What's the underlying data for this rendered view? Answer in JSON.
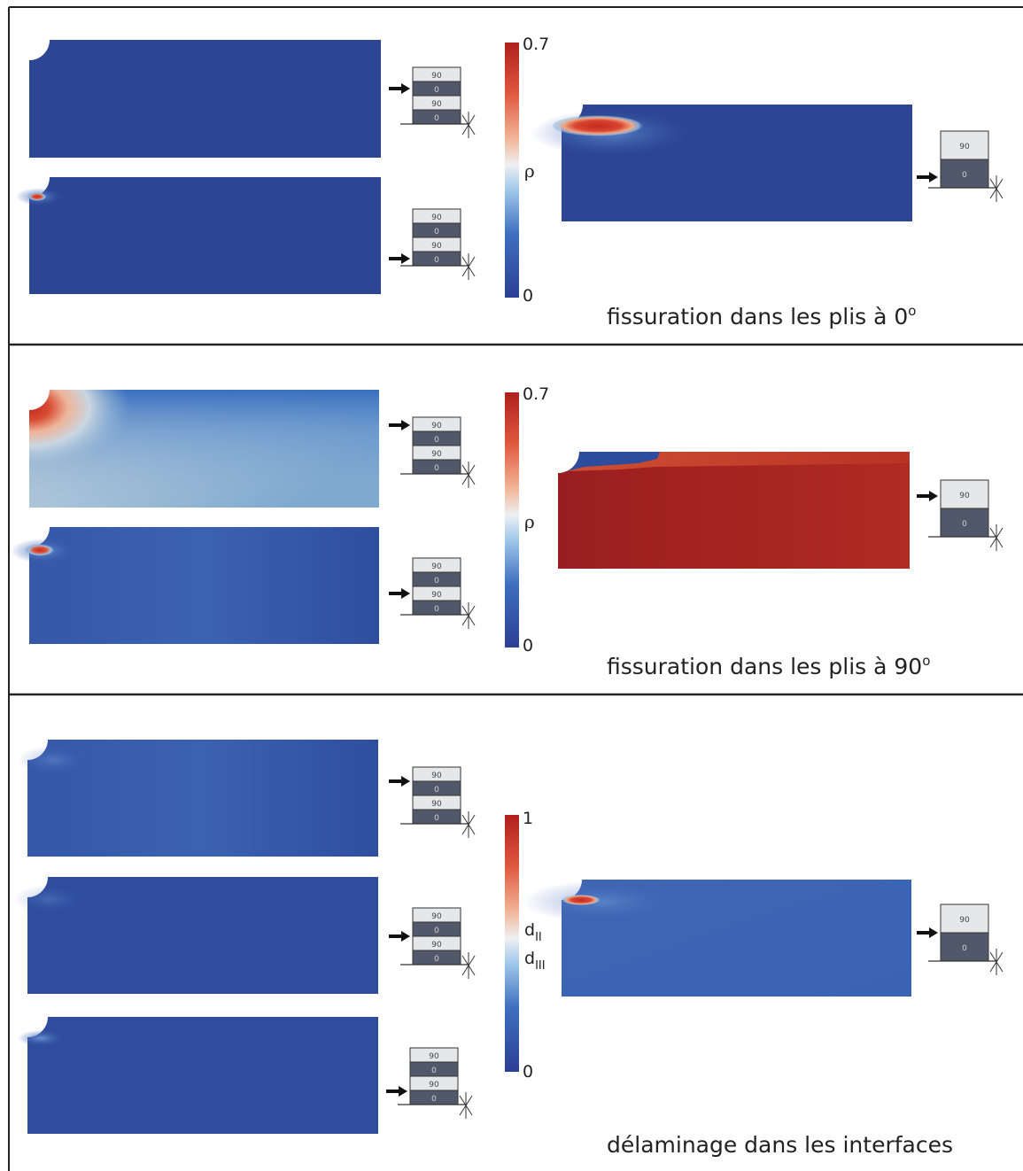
{
  "ply_angles": [
    "90",
    "0",
    "90",
    "0"
  ],
  "ply_angles_single": [
    "90",
    "0"
  ],
  "sections": [
    {
      "caption": "fissuration dans les plis à 0",
      "caption_superscript": "o",
      "colorbar": {
        "max": "0.7",
        "min": "0",
        "symbol": "ρ",
        "symbol_2": ""
      }
    },
    {
      "caption": "fissuration dans les plis à 90",
      "caption_superscript": "o",
      "colorbar": {
        "max": "0.7",
        "min": "0",
        "symbol": "ρ",
        "symbol_2": ""
      }
    },
    {
      "caption": "délaminage dans les interfaces",
      "caption_superscript": "",
      "colorbar": {
        "max": "1",
        "min": "0",
        "symbol": "d",
        "symbol_sub": "II",
        "symbol_2": "d",
        "symbol_2_sub": "III"
      }
    }
  ],
  "colors": {
    "low": "#2a4493",
    "mid": "#e9edf2",
    "high": "#b6251d",
    "ply_90": "#e6e7e9",
    "ply_0": "#50586a"
  }
}
